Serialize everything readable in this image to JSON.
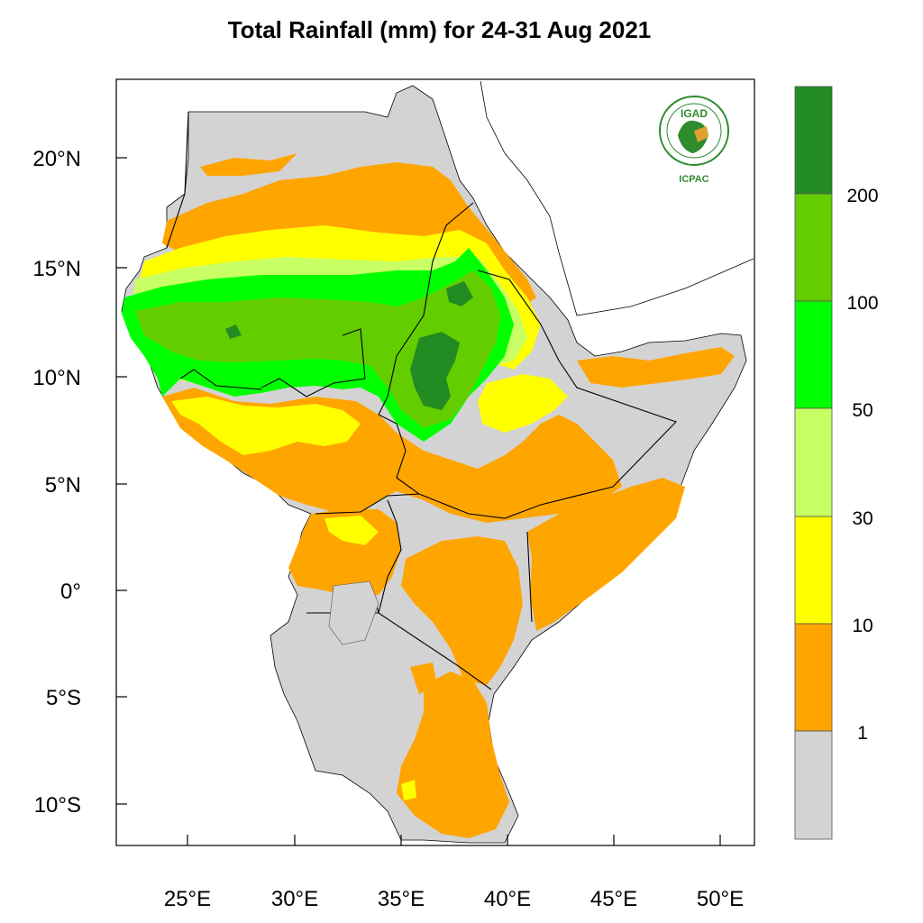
{
  "title": "Total Rainfall (mm) for 24-31 Aug 2021",
  "axes": {
    "lon_ticks": [
      "25°E",
      "30°E",
      "35°E",
      "40°E",
      "45°E",
      "50°E"
    ],
    "lat_ticks": [
      "20°N",
      "15°N",
      "10°N",
      "5°N",
      "0°",
      "5°S",
      "10°S"
    ]
  },
  "legend": {
    "labels": [
      "1",
      "10",
      "30",
      "50",
      "100",
      "200"
    ],
    "colors": [
      "#d3d3d3",
      "#ffa500",
      "#ffff00",
      "#c8ff64",
      "#00ff00",
      "#64cd00",
      "#228b22"
    ]
  },
  "logo": {
    "top_text": "IGAD",
    "bottom_text": "ICPAC",
    "accent": "#2e8b2e"
  },
  "chart_data": {
    "type": "heatmap",
    "title": "Total Rainfall (mm) for 24-31 Aug 2021",
    "xlim": [
      21.6,
      51.6
    ],
    "ylim": [
      -11.9,
      23.5
    ],
    "xticks": [
      25,
      30,
      35,
      40,
      45,
      50
    ],
    "yticks": [
      20,
      15,
      10,
      5,
      0,
      -5,
      -10
    ],
    "legend_levels": [
      1,
      10,
      30,
      50,
      100,
      200
    ],
    "legend_placement": "right"
  }
}
